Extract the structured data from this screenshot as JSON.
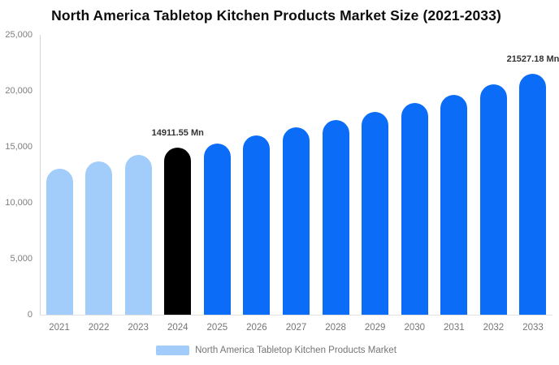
{
  "chart_data": {
    "type": "bar",
    "title": "North America Tabletop Kitchen Products Market Size (2021-2033)",
    "xlabel": "",
    "ylabel": "",
    "unit": "Mn",
    "categories": [
      "2021",
      "2022",
      "2023",
      "2024",
      "2025",
      "2026",
      "2027",
      "2028",
      "2029",
      "2030",
      "2031",
      "2032",
      "2033"
    ],
    "values": [
      13060,
      13670,
      14300,
      14911.55,
      15300,
      16000,
      16760,
      17400,
      18150,
      18900,
      19650,
      20550,
      21527.18
    ],
    "bar_segments": [
      "historical",
      "historical",
      "historical",
      "base_year",
      "forecast",
      "forecast",
      "forecast",
      "forecast",
      "forecast",
      "forecast",
      "forecast",
      "forecast",
      "forecast"
    ],
    "data_labels": [
      "",
      "",
      "",
      "14911.55 Mn",
      "",
      "",
      "",
      "",
      "",
      "",
      "",
      "",
      "21527.18 Mn"
    ],
    "ylim": [
      0,
      25000
    ],
    "ytick_values": [
      0,
      5000,
      10000,
      15000,
      20000,
      25000
    ],
    "ytick_labels": [
      "0",
      "5,000",
      "10,000",
      "15,000",
      "20,000",
      "25,000"
    ],
    "grid": false,
    "legend_position": "bottom",
    "legend": {
      "label": "North America Tabletop Kitchen Products Market"
    },
    "colors": {
      "historical": "#A2CDFA",
      "base_year": "#000000",
      "forecast": "#0A6CF7",
      "axis_line": "#D6D6D6",
      "baseline": "#E2E2E2",
      "tick_text": "#757575",
      "value_label_text": "#333333",
      "title_text": "#0D0D0D",
      "legend_swatch": "#A2CDFA"
    }
  }
}
